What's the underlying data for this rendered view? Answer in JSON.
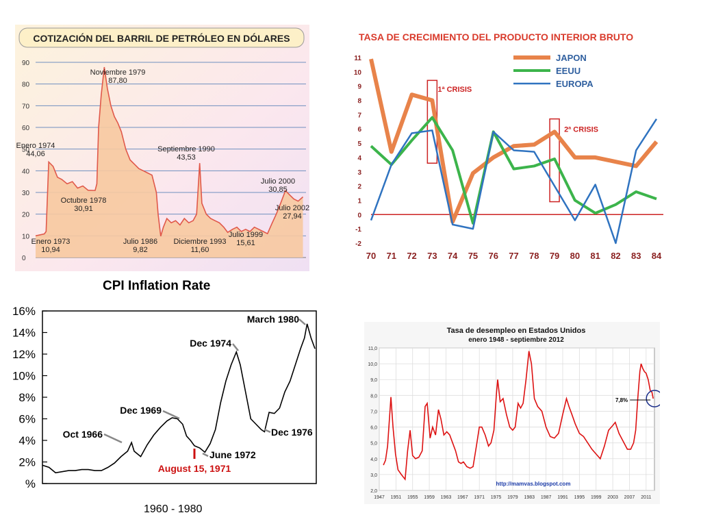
{
  "oil": {
    "chart_data": {
      "type": "line",
      "title": "COTIZACIÓN DEL BARRIL DE PETRÓLEO EN DÓLARES",
      "ylim": [
        0,
        90
      ],
      "yticks": [
        "0",
        "10",
        "20",
        "30",
        "40",
        "50",
        "60",
        "70",
        "80",
        "90"
      ],
      "x": [
        1972,
        1973.0,
        1973.2,
        1973.5,
        1974.0,
        1974.5,
        1975.0,
        1975.6,
        1976.2,
        1976.8,
        1977.4,
        1978.0,
        1978.8,
        1979.0,
        1979.2,
        1979.5,
        1979.85,
        1980.2,
        1980.6,
        1981.0,
        1981.4,
        1981.8,
        1982.3,
        1982.8,
        1983.3,
        1983.8,
        1984.3,
        1984.8,
        1985.3,
        1985.8,
        1986.0,
        1986.3,
        1986.6,
        1987.0,
        1987.5,
        1988.0,
        1988.5,
        1989.0,
        1989.5,
        1990.0,
        1990.4,
        1990.75,
        1991.0,
        1991.5,
        1992.0,
        1992.5,
        1993.0,
        1993.5,
        1993.95,
        1994.5,
        1995.0,
        1995.5,
        1996.0,
        1996.5,
        1997.0,
        1997.5,
        1998.0,
        1998.5,
        1999.0,
        1999.5,
        2000.0,
        2000.55,
        2001.0,
        2001.5,
        2002.0,
        2002.55
      ],
      "values": [
        10,
        10.9,
        12,
        44.06,
        42,
        37,
        36,
        34,
        35,
        32,
        33,
        31,
        30.91,
        34,
        60,
        75,
        87.8,
        78,
        70,
        65,
        62,
        58,
        50,
        45,
        43,
        41,
        40,
        39,
        38,
        30,
        20,
        9.82,
        14,
        18,
        16,
        17,
        15,
        18,
        16,
        17,
        20,
        43.53,
        25,
        20,
        18,
        17,
        16,
        14,
        11.6,
        13,
        14,
        12,
        13,
        12,
        14,
        13,
        12,
        11,
        15.61,
        20,
        25,
        30.85,
        29,
        27,
        26,
        27.94
      ],
      "annotations": [
        {
          "label": "Enero 1973",
          "value": "10,94"
        },
        {
          "label": "Enero 1974",
          "value": "44,06"
        },
        {
          "label": "Octubre 1978",
          "value": "30,91"
        },
        {
          "label": "Noviembre 1979",
          "value": "87,80"
        },
        {
          "label": "Julio 1986",
          "value": "9,82"
        },
        {
          "label": "Septiembre 1990",
          "value": "43,53"
        },
        {
          "label": "Diciembre 1993",
          "value": "11,60"
        },
        {
          "label": "Julio 1999",
          "value": "15,61"
        },
        {
          "label": "Julio 2000",
          "value": "30,85"
        },
        {
          "label": "Julio 2002",
          "value": "27,94"
        }
      ]
    }
  },
  "gdp": {
    "chart_data": {
      "type": "line",
      "title": "TASA DE CRECIMIENTO DEL PRODUCTO INTERIOR BRUTO",
      "categories": [
        "70",
        "71",
        "72",
        "73",
        "74",
        "75",
        "76",
        "77",
        "78",
        "79",
        "80",
        "81",
        "82",
        "83",
        "84"
      ],
      "ylim": [
        -2,
        11
      ],
      "yticks": [
        "-2",
        "-1",
        "0",
        "1",
        "2",
        "3",
        "4",
        "5",
        "6",
        "7",
        "8",
        "9",
        "10",
        "11"
      ],
      "series": [
        {
          "name": "JAPON",
          "color": "#e8834a",
          "values": [
            10.9,
            4.4,
            8.4,
            8.0,
            -0.5,
            2.9,
            4.0,
            4.8,
            4.9,
            5.8,
            4.0,
            4.0,
            3.7,
            3.4,
            5.1
          ]
        },
        {
          "name": "EEUU",
          "color": "#3cb44b",
          "values": [
            4.8,
            3.5,
            5.2,
            6.8,
            4.5,
            -0.6,
            5.8,
            3.2,
            3.4,
            3.9,
            1.0,
            0.1,
            0.7,
            1.6,
            1.1
          ]
        },
        {
          "name": "EUROPA",
          "color": "#2f73c0",
          "values": [
            -0.4,
            3.5,
            5.7,
            5.9,
            -0.7,
            -1.0,
            5.8,
            4.5,
            4.4,
            2.0,
            -0.4,
            2.1,
            -2.0,
            4.5,
            6.7
          ]
        }
      ],
      "annotations": [
        {
          "label": "1ª CRISIS",
          "color": "#cc2222"
        },
        {
          "label": "2ª CRISIS",
          "color": "#cc2222"
        }
      ]
    }
  },
  "cpi": {
    "title": "CPI Inflation Rate",
    "xlabel": "1960 - 1980",
    "chart_data": {
      "type": "line",
      "ylim": [
        0,
        16
      ],
      "yticks": [
        "%",
        "2%",
        "4%",
        "6%",
        "8%",
        "10%",
        "12%",
        "14%",
        "16%"
      ],
      "x": [
        1960,
        1960.5,
        1961,
        1961.5,
        1962,
        1962.5,
        1963,
        1963.5,
        1964,
        1964.5,
        1965,
        1965.5,
        1966,
        1966.5,
        1966.8,
        1967,
        1967.5,
        1968,
        1968.5,
        1969,
        1969.5,
        1969.9,
        1970.3,
        1970.7,
        1971.0,
        1971.3,
        1971.6,
        1972.0,
        1972.4,
        1972.8,
        1973.2,
        1973.6,
        1974.0,
        1974.4,
        1974.8,
        1975.1,
        1975.5,
        1975.9,
        1976.3,
        1976.7,
        1976.95,
        1977.3,
        1977.7,
        1978.1,
        1978.5,
        1978.9,
        1979.3,
        1979.7,
        1980.0,
        1980.2,
        1980.5,
        1980.8
      ],
      "values": [
        1.7,
        1.5,
        1.0,
        1.1,
        1.2,
        1.2,
        1.3,
        1.3,
        1.2,
        1.2,
        1.5,
        1.9,
        2.5,
        3.0,
        3.8,
        3.0,
        2.5,
        3.6,
        4.5,
        5.2,
        5.8,
        6.1,
        6.0,
        5.5,
        4.4,
        4.0,
        3.5,
        3.3,
        2.9,
        3.7,
        5.0,
        7.5,
        9.5,
        11.0,
        12.2,
        11.0,
        8.5,
        6.0,
        5.5,
        5.0,
        4.8,
        6.6,
        6.5,
        7.0,
        8.5,
        9.5,
        11.0,
        12.5,
        13.5,
        14.8,
        13.5,
        12.5
      ],
      "annotations": [
        {
          "label": "Oct 1966",
          "color": "#000000"
        },
        {
          "label": "Dec 1969",
          "color": "#000000"
        },
        {
          "label": "Dec 1974",
          "color": "#000000"
        },
        {
          "label": "March 1980",
          "color": "#000000"
        },
        {
          "label": "June 1972",
          "color": "#000000"
        },
        {
          "label": "Dec 1976",
          "color": "#000000"
        },
        {
          "label": "August 15, 1971",
          "color": "#cc1111"
        }
      ]
    }
  },
  "unemp": {
    "chart_data": {
      "type": "line",
      "title": "Tasa de desempleo en Estados Unidos",
      "subtitle": "enero 1948 - septiembre 2012",
      "ylim": [
        2.0,
        11.0
      ],
      "yticks": [
        "2,0",
        "3,0",
        "4,0",
        "5,0",
        "6,0",
        "7,0",
        "8,0",
        "9,0",
        "10,0",
        "11,0"
      ],
      "xticks": [
        "1947",
        "1951",
        "1955",
        "1959",
        "1963",
        "1967",
        "1971",
        "1975",
        "1979",
        "1983",
        "1987",
        "1991",
        "1995",
        "1999",
        "2003",
        "2007",
        "2011"
      ],
      "x": [
        1948,
        1948.5,
        1949,
        1949.8,
        1950.3,
        1950.9,
        1951.5,
        1952.3,
        1953.2,
        1953.8,
        1954.4,
        1955,
        1955.7,
        1956.5,
        1957.3,
        1958.0,
        1958.5,
        1959.2,
        1959.8,
        1960.5,
        1961.2,
        1961.8,
        1962.5,
        1963.2,
        1963.9,
        1964.6,
        1965.3,
        1966,
        1966.6,
        1967.2,
        1968,
        1968.8,
        1969.5,
        1970.3,
        1971,
        1971.6,
        1972.4,
        1973.2,
        1973.8,
        1974.5,
        1975.1,
        1975.4,
        1976,
        1976.7,
        1977.5,
        1978.3,
        1979.0,
        1979.6,
        1980.3,
        1980.9,
        1981.5,
        1982.2,
        1982.9,
        1983.5,
        1984.2,
        1985,
        1986,
        1987,
        1988,
        1989,
        1990,
        1991,
        1991.9,
        1992.5,
        1993.2,
        1994,
        1995,
        1996,
        1997,
        1998,
        1999,
        2000,
        2001,
        2002,
        2003,
        2003.6,
        2004.5,
        2005.5,
        2006.5,
        2007.3,
        2008.0,
        2008.5,
        2009.0,
        2009.5,
        2009.8,
        2010.2,
        2010.6,
        2011.0,
        2011.5,
        2012.0,
        2012.4,
        2012.7
      ],
      "values": [
        3.6,
        3.9,
        4.8,
        7.9,
        6.0,
        4.3,
        3.3,
        3.0,
        2.7,
        4.5,
        5.8,
        4.2,
        4.0,
        4.1,
        4.5,
        7.3,
        7.5,
        5.3,
        6.0,
        5.5,
        7.1,
        6.5,
        5.5,
        5.7,
        5.5,
        5.0,
        4.5,
        3.8,
        3.7,
        3.8,
        3.5,
        3.4,
        3.5,
        4.8,
        6.0,
        6.0,
        5.5,
        4.8,
        5.0,
        5.8,
        8.1,
        9.0,
        7.6,
        7.8,
        6.8,
        6.0,
        5.8,
        6.0,
        7.5,
        7.2,
        7.5,
        9.0,
        10.8,
        10.0,
        7.8,
        7.3,
        7.0,
        6.0,
        5.4,
        5.3,
        5.6,
        6.8,
        7.8,
        7.3,
        6.8,
        6.2,
        5.6,
        5.4,
        5.0,
        4.6,
        4.3,
        4.0,
        4.8,
        5.8,
        6.1,
        6.3,
        5.6,
        5.1,
        4.6,
        4.6,
        5.0,
        5.8,
        7.8,
        9.5,
        10.0,
        9.7,
        9.5,
        9.4,
        9.0,
        8.3,
        8.2,
        7.8
      ],
      "highlight": "7,8%",
      "source": "http://mamvas.blogspot.com"
    }
  }
}
